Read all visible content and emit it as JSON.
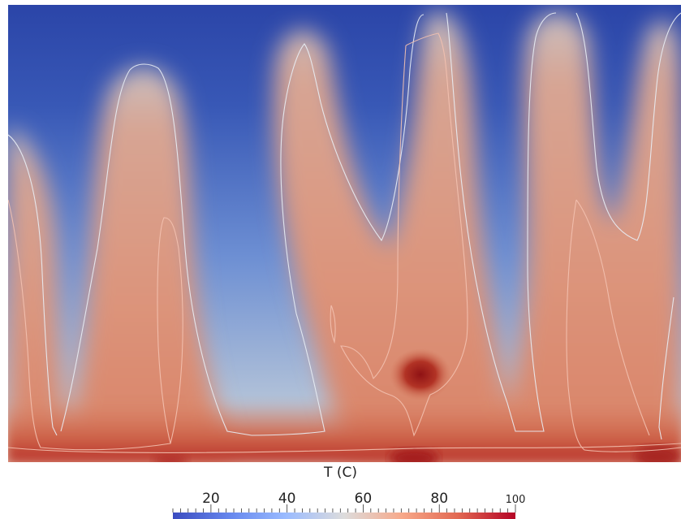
{
  "legend": {
    "title": "T (C)",
    "min": 10,
    "max": 100,
    "tick_labels": [
      "20",
      "40",
      "60",
      "80",
      "100"
    ],
    "tick_values": [
      20,
      40,
      60,
      80,
      100
    ],
    "colormap": [
      "#3b4cc0",
      "#7396f5",
      "#b0cbfc",
      "#dcdddd",
      "#f6bfa6",
      "#ea7b60",
      "#b40426"
    ]
  },
  "field": {
    "description_colors": {
      "cold": "#2b49a6",
      "mid": "#a7bfda",
      "warm": "#d98a70",
      "hot": "#9a1c20"
    }
  }
}
